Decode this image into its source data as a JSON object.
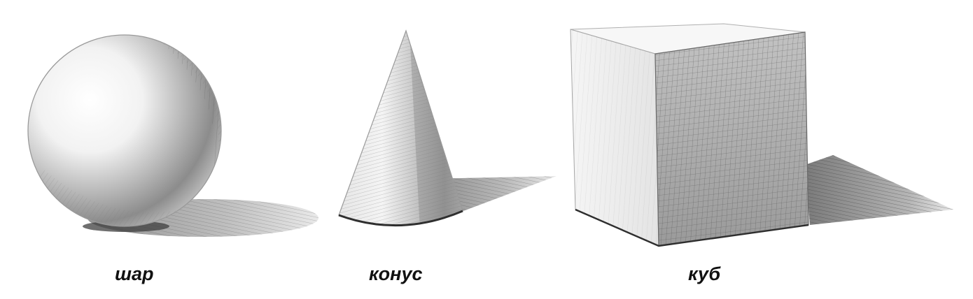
{
  "figures": [
    {
      "id": "sphere",
      "label": "шар"
    },
    {
      "id": "cone",
      "label": "конус"
    },
    {
      "id": "cube",
      "label": "куб"
    }
  ],
  "colors": {
    "background": "#ffffff",
    "pencil_dark": "#2e2e2e",
    "pencil_mid": "#8a8a8a",
    "pencil_light": "#d6d6d6"
  }
}
